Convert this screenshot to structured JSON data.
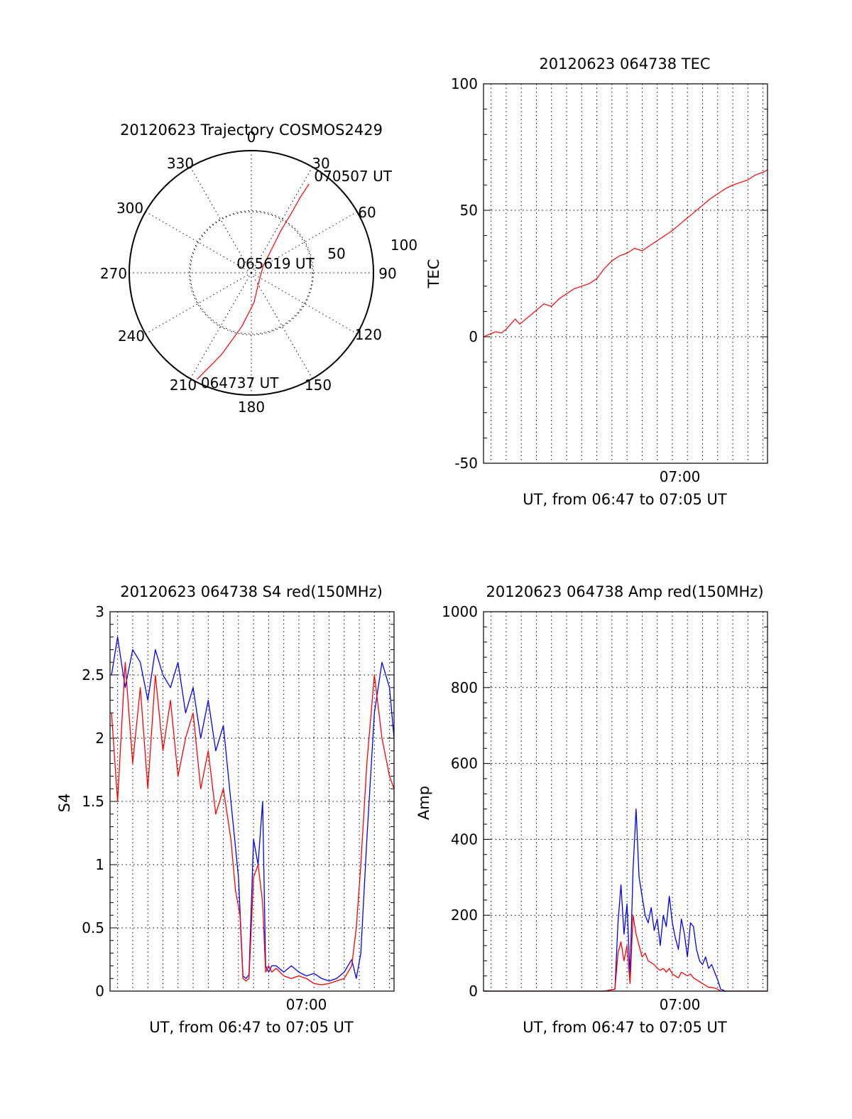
{
  "chart_data": [
    {
      "type": "polar",
      "title": "20120623 Trajectory COSMOS2429",
      "rlim": [
        0,
        90
      ],
      "radial_grid": [
        {
          "r": 50,
          "label": "50"
        },
        {
          "r": 100,
          "label": "100"
        }
      ],
      "angle_labels": [
        "0",
        "30",
        "60",
        "90",
        "120",
        "150",
        "180",
        "210",
        "240",
        "270",
        "300",
        "330"
      ],
      "series": [
        {
          "color": "#ff0000",
          "points": [
            {
              "az": 207,
              "r": 88
            },
            {
              "az": 200,
              "r": 64
            },
            {
              "az": 190,
              "r": 40
            },
            {
              "az": 175,
              "r": 22
            },
            {
              "az": 150,
              "r": 10
            },
            {
              "az": 60,
              "r": 10
            },
            {
              "az": 40,
              "r": 24
            },
            {
              "az": 35,
              "r": 38
            },
            {
              "az": 34,
              "r": 52
            },
            {
              "az": 33,
              "r": 66
            },
            {
              "az": 33,
              "r": 78
            }
          ]
        }
      ],
      "annotations": [
        {
          "text": "064737 UT",
          "az": 207,
          "r": 88
        },
        {
          "text": "065619 UT",
          "az": 0,
          "r": 0
        },
        {
          "text": "070507 UT",
          "az": 33,
          "r": 78
        }
      ]
    },
    {
      "type": "line",
      "title": "20120623 064738 TEC",
      "xlabel": "UT, from 06:47 to 07:05 UT",
      "ylabel": "TEC",
      "xlim": [
        0,
        18.8
      ],
      "ylim": [
        -50,
        100
      ],
      "yticks": [
        -50,
        0,
        50,
        100
      ],
      "xtick_labels": [
        {
          "x": 13,
          "label": "07:00"
        }
      ],
      "xgrid_step": 1,
      "grid": true,
      "series": [
        {
          "color": "#ff0000",
          "x": [
            0,
            0.4,
            0.8,
            1.2,
            1.5,
            1.8,
            2.1,
            2.4,
            2.8,
            3.2,
            3.6,
            4,
            4.5,
            5,
            5.5,
            6,
            6.5,
            7,
            7.5,
            8,
            8.5,
            9,
            9.5,
            10,
            10.5,
            11,
            11.5,
            12,
            12.5,
            13,
            13.5,
            14,
            14.5,
            15,
            15.5,
            16,
            16.5,
            17,
            17.5,
            18,
            18.5,
            18.8
          ],
          "y": [
            0,
            1,
            2,
            1.5,
            3,
            5,
            7,
            5,
            7,
            9,
            11,
            13,
            12,
            15,
            17,
            19,
            20,
            21,
            23,
            27,
            30,
            32,
            33,
            35,
            34,
            36,
            38,
            40,
            42,
            44.5,
            47,
            49.5,
            52,
            54.5,
            56.5,
            58.5,
            60,
            61,
            62,
            64,
            65,
            66
          ]
        }
      ]
    },
    {
      "type": "line",
      "title": "20120623 064738 S4 red(150MHz)",
      "xlabel": "UT, from 06:47 to 07:05 UT",
      "ylabel": "S4",
      "xlim": [
        0,
        18.8
      ],
      "ylim": [
        0,
        3
      ],
      "yticks": [
        0,
        0.5,
        1,
        1.5,
        2,
        2.5,
        3
      ],
      "ytick_labels": [
        "0",
        "0.5",
        "1",
        "1.5",
        "2",
        "2.5",
        "3"
      ],
      "xtick_labels": [
        {
          "x": 13,
          "label": "07:00"
        }
      ],
      "xgrid_step": 1,
      "grid": true,
      "series": [
        {
          "color": "#0000ff",
          "x": [
            0.1,
            0.5,
            1,
            1.5,
            2,
            2.5,
            3,
            3.5,
            4,
            4.5,
            5,
            5.5,
            6,
            6.5,
            7,
            7.5,
            8,
            8.5,
            8.8,
            9,
            9.2,
            9.5,
            9.8,
            10.1,
            10.3,
            10.5,
            10.7,
            11,
            11.5,
            12,
            12.5,
            13,
            13.5,
            14,
            14.5,
            15,
            15.5,
            16,
            16.3,
            16.6,
            17,
            17.5,
            18,
            18.5,
            18.8
          ],
          "y": [
            2.5,
            2.8,
            2.4,
            2.7,
            2.6,
            2.3,
            2.7,
            2.5,
            2.4,
            2.6,
            2.2,
            2.4,
            2.0,
            2.3,
            1.9,
            2.1,
            1.5,
            0.9,
            0.12,
            0.1,
            0.13,
            1.2,
            1.0,
            1.5,
            0.2,
            0.15,
            0.2,
            0.2,
            0.15,
            0.2,
            0.15,
            0.12,
            0.14,
            0.1,
            0.08,
            0.1,
            0.15,
            0.25,
            0.1,
            0.3,
            1.2,
            2.2,
            2.6,
            2.4,
            2.0
          ]
        },
        {
          "color": "#ff0000",
          "x": [
            0.1,
            0.5,
            1,
            1.5,
            2,
            2.5,
            3,
            3.5,
            4,
            4.5,
            5,
            5.5,
            6,
            6.5,
            7,
            7.5,
            8,
            8.3,
            8.6,
            8.8,
            9,
            9.2,
            9.5,
            9.8,
            10.1,
            10.3,
            10.5,
            10.7,
            11,
            11.5,
            12,
            12.5,
            13,
            13.5,
            14,
            14.5,
            15,
            15.5,
            16,
            16.3,
            16.6,
            17,
            17.5,
            18,
            18.5,
            18.8
          ],
          "y": [
            2.2,
            1.5,
            2.6,
            1.8,
            2.4,
            1.6,
            2.5,
            1.9,
            2.3,
            1.7,
            2.0,
            2.2,
            1.6,
            1.9,
            1.4,
            1.6,
            1.2,
            0.8,
            0.6,
            0.1,
            0.08,
            0.1,
            0.9,
            1.0,
            0.7,
            0.15,
            0.2,
            0.15,
            0.18,
            0.12,
            0.1,
            0.12,
            0.1,
            0.06,
            0.05,
            0.06,
            0.08,
            0.1,
            0.2,
            0.5,
            1.0,
            1.8,
            2.5,
            2.0,
            1.7,
            1.6
          ]
        }
      ]
    },
    {
      "type": "line",
      "title": "20120623 064738 Amp red(150MHz)",
      "xlabel": "UT, from 06:47 to 07:05 UT",
      "ylabel": "Amp",
      "xlim": [
        0,
        18.8
      ],
      "ylim": [
        0,
        1000
      ],
      "yticks": [
        0,
        200,
        400,
        600,
        800,
        1000
      ],
      "xtick_labels": [
        {
          "x": 13,
          "label": "07:00"
        }
      ],
      "xgrid_step": 1,
      "grid": true,
      "series": [
        {
          "color": "#0000ff",
          "x": [
            0,
            4,
            8,
            8.7,
            8.9,
            9.1,
            9.3,
            9.5,
            9.7,
            9.9,
            10.1,
            10.3,
            10.5,
            10.7,
            10.9,
            11.1,
            11.3,
            11.5,
            11.7,
            11.9,
            12.1,
            12.3,
            12.5,
            12.7,
            12.9,
            13.1,
            13.3,
            13.5,
            13.7,
            13.9,
            14.1,
            14.3,
            14.5,
            14.7,
            14.9,
            15.1,
            15.3,
            15.5,
            15.7,
            16,
            17,
            18.8
          ],
          "y": [
            0,
            0,
            0,
            5,
            180,
            280,
            150,
            230,
            40,
            320,
            480,
            300,
            250,
            200,
            180,
            220,
            160,
            190,
            120,
            200,
            170,
            250,
            180,
            140,
            110,
            190,
            150,
            90,
            180,
            170,
            110,
            80,
            70,
            90,
            60,
            70,
            50,
            30,
            5,
            0,
            0,
            0
          ]
        },
        {
          "color": "#ff0000",
          "x": [
            0,
            4,
            8,
            8.7,
            8.9,
            9.1,
            9.3,
            9.5,
            9.7,
            9.9,
            10.1,
            10.3,
            10.5,
            10.7,
            10.9,
            11.1,
            11.3,
            11.5,
            11.7,
            11.9,
            12.1,
            12.3,
            12.5,
            12.7,
            12.9,
            13.1,
            13.3,
            13.5,
            13.7,
            13.9,
            14.1,
            14.3,
            14.5,
            14.7,
            14.9,
            15.1,
            15.3,
            15.5,
            15.7,
            16,
            17,
            18.8
          ],
          "y": [
            0,
            0,
            0,
            5,
            100,
            130,
            80,
            120,
            20,
            200,
            150,
            120,
            90,
            100,
            80,
            75,
            70,
            60,
            55,
            60,
            50,
            60,
            45,
            40,
            35,
            50,
            45,
            40,
            45,
            35,
            30,
            25,
            20,
            15,
            10,
            10,
            8,
            5,
            0,
            0,
            0,
            0
          ]
        }
      ]
    }
  ]
}
